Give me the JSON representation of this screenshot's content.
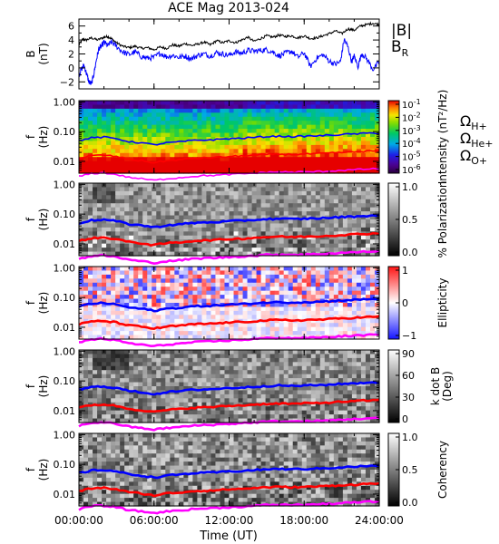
{
  "chart_data": {
    "title": "ACE Mag 2013-024",
    "x_axis": {
      "label": "Time (UT)",
      "range_hours": [
        0,
        24
      ],
      "ticks": [
        {
          "hour": 0,
          "label": "00:00:00"
        },
        {
          "hour": 6,
          "label": "06:00:00"
        },
        {
          "hour": 12,
          "label": "12:00:00"
        },
        {
          "hour": 18,
          "label": "18:00:00"
        },
        {
          "hour": 24,
          "label": "24:00:00"
        }
      ]
    },
    "frequency_axis": {
      "scale": "log",
      "range_hz": [
        0.004,
        1.1
      ],
      "ticks": [
        {
          "value": 1.0,
          "label": "1.00"
        },
        {
          "value": 0.1,
          "label": "0.10"
        },
        {
          "value": 0.01,
          "label": "0.01"
        }
      ]
    },
    "panels": [
      {
        "id": "field",
        "type": "line",
        "ylabel": "B",
        "yunit": "(nT)",
        "ylim": [
          -3,
          7
        ],
        "yticks": [
          -2,
          0,
          2,
          4,
          6
        ],
        "series": [
          {
            "name": "|B|",
            "color": "#000000",
            "hours": [
              0,
              0.3,
              0.6,
              1,
              1.5,
              2,
              2.3,
              2.6,
              3,
              3.5,
              4,
              4.5,
              5,
              5.5,
              6,
              6.5,
              7,
              7.5,
              8,
              8.5,
              9,
              9.5,
              10,
              10.5,
              11,
              11.5,
              12,
              12.5,
              13,
              13.5,
              14,
              14.5,
              15,
              15.5,
              16,
              16.5,
              17,
              17.5,
              18,
              18.5,
              19,
              19.5,
              20,
              20.5,
              21,
              21.5,
              22,
              22.5,
              23,
              23.5,
              24
            ],
            "values": [
              3.3,
              4.1,
              4.0,
              4.3,
              4.0,
              4.4,
              4.5,
              4.2,
              3.6,
              3.1,
              2.9,
              3.1,
              2.8,
              2.9,
              2.6,
              3.0,
              2.8,
              3.3,
              3.1,
              3.5,
              3.2,
              3.4,
              3.7,
              3.3,
              3.9,
              3.6,
              3.9,
              3.6,
              4.0,
              4.4,
              3.8,
              4.2,
              4.6,
              4.4,
              4.7,
              4.5,
              4.6,
              4.3,
              4.6,
              4.2,
              4.3,
              4.6,
              4.9,
              5.3,
              4.9,
              5.6,
              5.4,
              6.0,
              6.2,
              6.4,
              6.2
            ]
          },
          {
            "name": "B_R",
            "color": "#0000ff",
            "hours": [
              0,
              0.2,
              0.4,
              0.6,
              0.8,
              1,
              1.2,
              1.4,
              1.6,
              1.8,
              2,
              2.3,
              2.6,
              3,
              3.5,
              4,
              4.5,
              5,
              5.5,
              6,
              6.5,
              7,
              7.5,
              8,
              8.5,
              9,
              9.5,
              10,
              10.5,
              11,
              11.5,
              12,
              12.5,
              13,
              13.5,
              14,
              14.5,
              15,
              15.5,
              16,
              16.5,
              17,
              17.5,
              18,
              18.5,
              19,
              19.5,
              20,
              20.5,
              20.9,
              21.2,
              21.5,
              21.8,
              22,
              22.3,
              22.6,
              23,
              23.5,
              24
            ],
            "values": [
              -1.0,
              -0.2,
              0.4,
              -0.8,
              -2.0,
              -2.3,
              -0.8,
              1.2,
              2.8,
              3.1,
              3.7,
              3.2,
              3.7,
              3.1,
              2.3,
              1.9,
              2.3,
              1.6,
              1.4,
              1.5,
              2.1,
              1.6,
              1.8,
              1.5,
              1.7,
              1.3,
              1.8,
              2.0,
              1.7,
              2.2,
              2.0,
              1.8,
              2.3,
              2.1,
              2.5,
              2.4,
              2.5,
              2.6,
              2.3,
              1.7,
              2.1,
              2.4,
              1.5,
              2.2,
              0.2,
              1.4,
              1.9,
              1.0,
              0.5,
              0.9,
              4.1,
              3.0,
              0.9,
              1.7,
              0.2,
              2.1,
              1.3,
              -0.2,
              0.8
            ]
          }
        ],
        "legend": [
          {
            "text": "|B|",
            "color": "#000000"
          },
          {
            "text": "B",
            "sub": "R",
            "color": "#0000ff"
          }
        ]
      },
      {
        "id": "intensity",
        "type": "heatmap",
        "ylabel": "f",
        "yunit": "(Hz)",
        "colorbar": {
          "palette": "rainbow",
          "label": "Intensity (nT²/Hz)",
          "ticks": [
            {
              "base": "10",
              "exp": "-1"
            },
            {
              "base": "10",
              "exp": "-2"
            },
            {
              "base": "10",
              "exp": "-3"
            },
            {
              "base": "10",
              "exp": "-4"
            },
            {
              "base": "10",
              "exp": "-5"
            },
            {
              "base": "10",
              "exp": "-6"
            }
          ]
        }
      },
      {
        "id": "polarization",
        "type": "heatmap",
        "ylabel": "f",
        "yunit": "(Hz)",
        "colorbar": {
          "palette": "gray",
          "label": "% Polarization",
          "ticks": [
            "1.0",
            "0.5",
            "0.0"
          ]
        }
      },
      {
        "id": "ellipticity",
        "type": "heatmap",
        "ylabel": "f",
        "yunit": "(Hz)",
        "colorbar": {
          "palette": "bwr",
          "label": "Ellipticity",
          "ticks": [
            "1",
            "0",
            "−1"
          ]
        }
      },
      {
        "id": "kdotb",
        "type": "heatmap",
        "ylabel": "f",
        "yunit": "(Hz)",
        "colorbar": {
          "palette": "gray",
          "label": "k dot B",
          "sublabel": "(Deg)",
          "ticks": [
            "90",
            "60",
            "30",
            "0"
          ]
        }
      },
      {
        "id": "coherency",
        "type": "heatmap",
        "ylabel": "f",
        "yunit": "(Hz)",
        "colorbar": {
          "palette": "gray",
          "label": "Coherency",
          "ticks": [
            "1.0",
            "0.5",
            "0.0"
          ]
        }
      }
    ],
    "gyrofrequency_lines": [
      {
        "name": "ΩH+",
        "symbol": "Ω",
        "sub": "H+",
        "color": "#0000ff",
        "hours": [
          0,
          1,
          2,
          3,
          4,
          5,
          6,
          7,
          8,
          9,
          10,
          11,
          12,
          13,
          14,
          15,
          16,
          17,
          18,
          19,
          20,
          21,
          22,
          23,
          24
        ],
        "values_hz": [
          0.05,
          0.062,
          0.065,
          0.058,
          0.046,
          0.042,
          0.036,
          0.042,
          0.045,
          0.05,
          0.052,
          0.054,
          0.058,
          0.06,
          0.064,
          0.068,
          0.07,
          0.068,
          0.07,
          0.072,
          0.075,
          0.08,
          0.083,
          0.088,
          0.09
        ]
      },
      {
        "name": "ΩHe+",
        "symbol": "Ω",
        "sub": "He+",
        "color": "#ff0000",
        "hours": [
          0,
          1,
          2,
          3,
          4,
          5,
          6,
          7,
          8,
          9,
          10,
          11,
          12,
          13,
          14,
          15,
          16,
          17,
          18,
          19,
          20,
          21,
          22,
          23,
          24
        ],
        "values_hz": [
          0.0125,
          0.0155,
          0.0162,
          0.0145,
          0.0115,
          0.0105,
          0.009,
          0.0105,
          0.0112,
          0.0125,
          0.013,
          0.0135,
          0.0145,
          0.015,
          0.016,
          0.017,
          0.0175,
          0.017,
          0.0175,
          0.018,
          0.0188,
          0.02,
          0.0208,
          0.022,
          0.0225
        ]
      },
      {
        "name": "ΩO+",
        "symbol": "Ω",
        "sub": "O+",
        "color": "#ff00ff",
        "hours": [
          0,
          1,
          2,
          3,
          4,
          5,
          6,
          7,
          8,
          9,
          10,
          11,
          12,
          13,
          14,
          15,
          16,
          17,
          18,
          19,
          20,
          21,
          22,
          23,
          24
        ],
        "values_hz": [
          0.0031,
          0.0039,
          0.0041,
          0.0036,
          0.0029,
          0.0026,
          0.0023,
          0.0026,
          0.0028,
          0.0031,
          0.0033,
          0.0034,
          0.0036,
          0.0038,
          0.004,
          0.0043,
          0.0044,
          0.0043,
          0.0044,
          0.0045,
          0.0047,
          0.005,
          0.0052,
          0.0055,
          0.0056
        ]
      }
    ]
  }
}
